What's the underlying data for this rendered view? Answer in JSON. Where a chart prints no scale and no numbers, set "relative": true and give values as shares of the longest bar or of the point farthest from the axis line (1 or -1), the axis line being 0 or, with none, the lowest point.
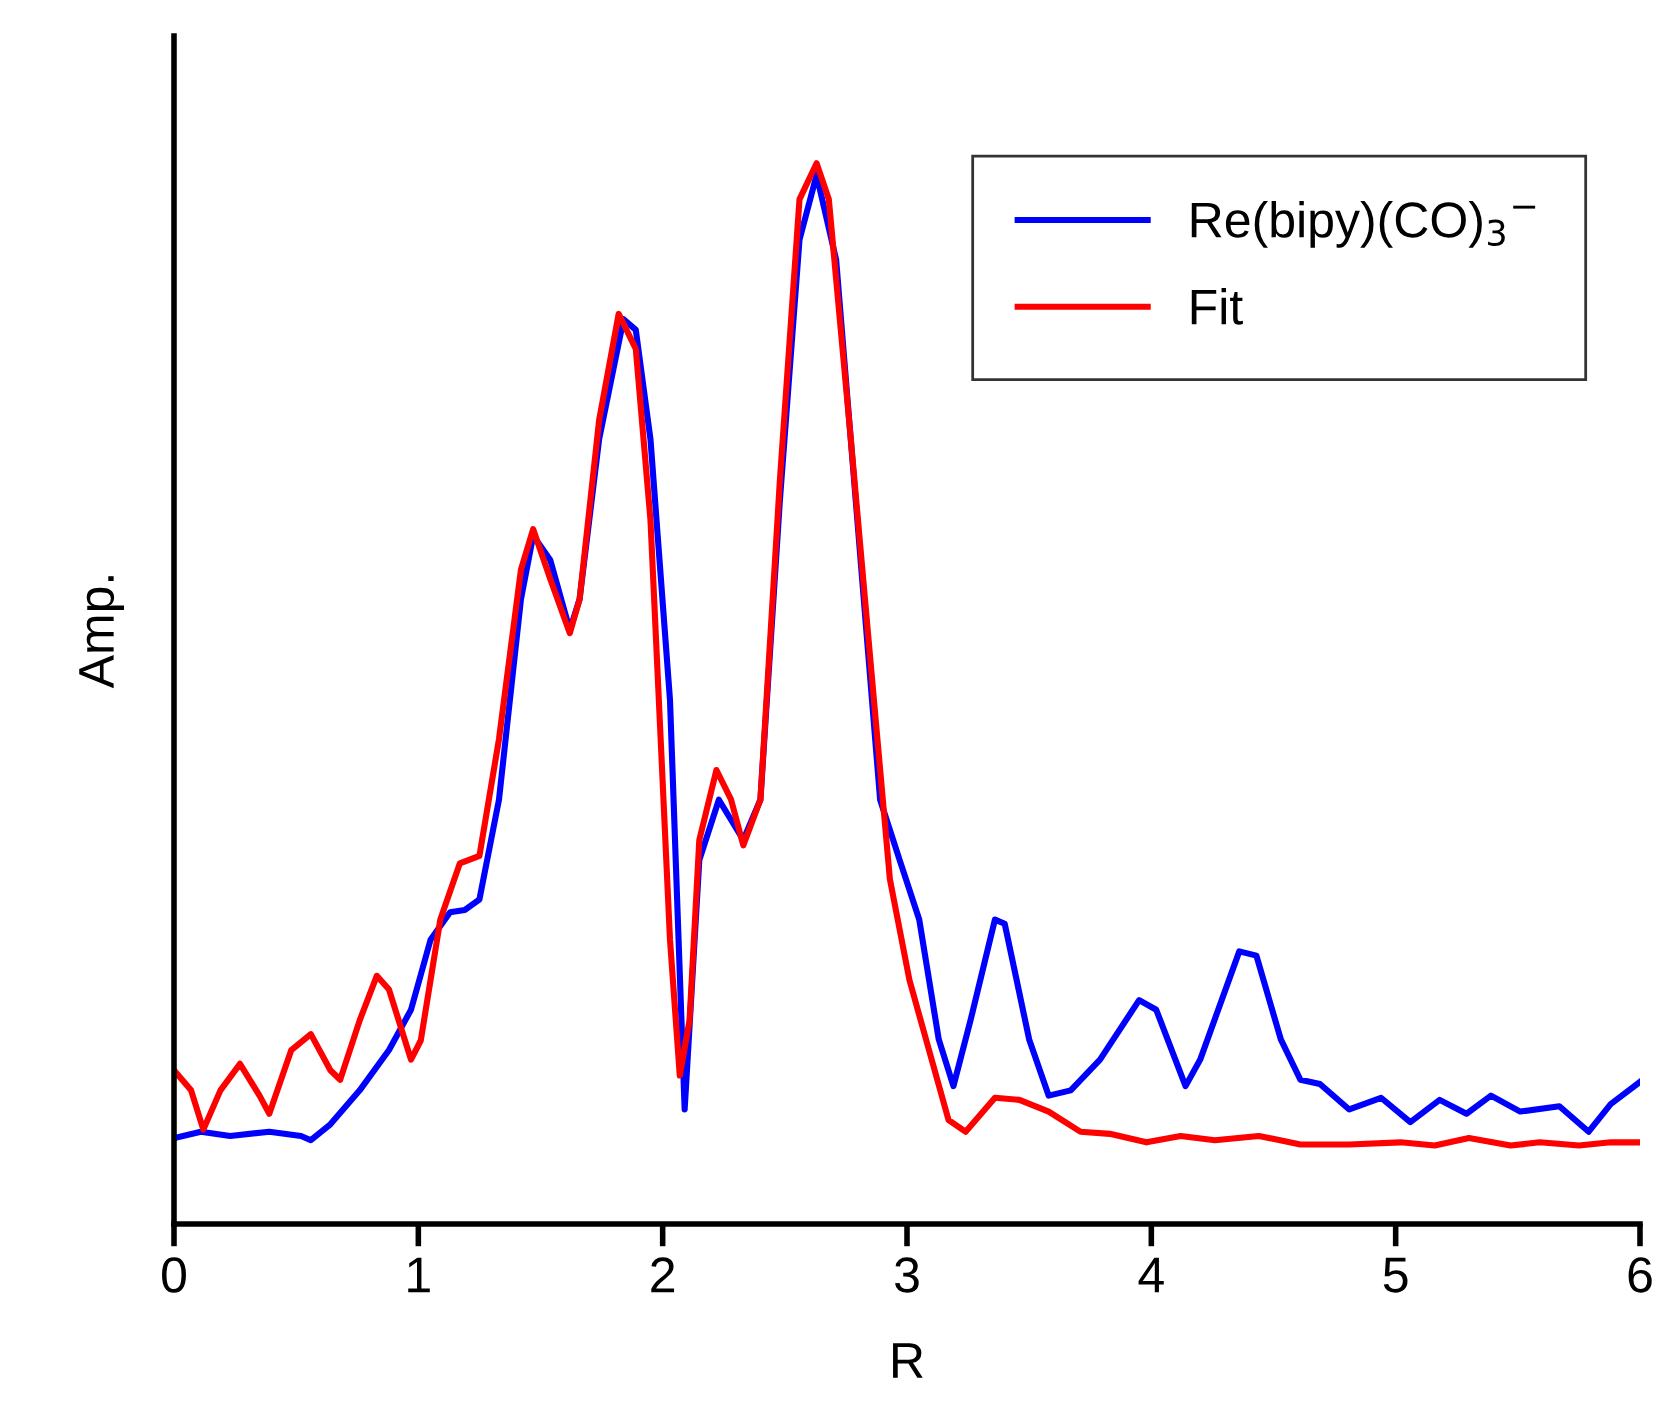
{
  "chart_data": {
    "type": "line",
    "xlabel": "R",
    "ylabel": "Amp.",
    "relative": true,
    "tick_labels": "x",
    "xlim": [
      0,
      6
    ],
    "xticks": [
      0,
      1,
      2,
      3,
      4,
      5,
      6
    ],
    "legend": "top right",
    "grid": false,
    "series": [
      {
        "name": "Re(bipy)(CO)$_{3}$$^{−}$",
        "color": "#0000ff",
        "x": [
          0,
          0.11,
          0.23,
          0.39,
          0.52,
          0.56,
          0.64,
          0.76,
          0.88,
          0.97,
          1.05,
          1.13,
          1.19,
          1.25,
          1.33,
          1.42,
          1.47,
          1.54,
          1.62,
          1.66,
          1.74,
          1.84,
          1.89,
          1.95,
          2.03,
          2.09,
          2.15,
          2.23,
          2.33,
          2.4,
          2.48,
          2.56,
          2.63,
          2.71,
          2.81,
          2.89,
          2.97,
          3.05,
          3.13,
          3.19,
          3.26,
          3.36,
          3.4,
          3.5,
          3.58,
          3.67,
          3.79,
          3.95,
          4.02,
          4.14,
          4.2,
          4.36,
          4.43,
          4.53,
          4.61,
          4.69,
          4.81,
          4.94,
          5.06,
          5.18,
          5.29,
          5.39,
          5.51,
          5.67,
          5.79,
          5.88,
          6.0
        ],
        "values": [
          0.081,
          0.087,
          0.083,
          0.087,
          0.083,
          0.079,
          0.094,
          0.126,
          0.164,
          0.202,
          0.268,
          0.294,
          0.296,
          0.306,
          0.4,
          0.589,
          0.649,
          0.626,
          0.56,
          0.589,
          0.74,
          0.853,
          0.843,
          0.74,
          0.494,
          0.108,
          0.343,
          0.4,
          0.362,
          0.4,
          0.683,
          0.928,
          0.989,
          0.909,
          0.626,
          0.4,
          0.343,
          0.287,
          0.174,
          0.13,
          0.192,
          0.287,
          0.283,
          0.174,
          0.121,
          0.126,
          0.155,
          0.211,
          0.202,
          0.13,
          0.155,
          0.257,
          0.253,
          0.174,
          0.136,
          0.132,
          0.108,
          0.119,
          0.096,
          0.117,
          0.104,
          0.121,
          0.106,
          0.111,
          0.087,
          0.113,
          0.134
        ]
      },
      {
        "name": "Fit",
        "color": "#ff0000",
        "x": [
          0,
          0.07,
          0.12,
          0.19,
          0.27,
          0.35,
          0.39,
          0.48,
          0.56,
          0.64,
          0.68,
          0.76,
          0.83,
          0.88,
          0.97,
          1.01,
          1.09,
          1.17,
          1.25,
          1.33,
          1.42,
          1.47,
          1.54,
          1.62,
          1.66,
          1.74,
          1.82,
          1.89,
          1.95,
          2.03,
          2.07,
          2.11,
          2.15,
          2.22,
          2.28,
          2.33,
          2.4,
          2.48,
          2.56,
          2.63,
          2.68,
          2.77,
          2.85,
          2.93,
          3.01,
          3.09,
          3.17,
          3.24,
          3.36,
          3.46,
          3.58,
          3.71,
          3.83,
          3.98,
          4.12,
          4.26,
          4.44,
          4.61,
          4.81,
          5.02,
          5.16,
          5.3,
          5.47,
          5.59,
          5.75,
          5.88,
          6.0
        ],
        "values": [
          0.145,
          0.126,
          0.089,
          0.126,
          0.151,
          0.121,
          0.104,
          0.164,
          0.179,
          0.145,
          0.136,
          0.192,
          0.234,
          0.221,
          0.155,
          0.173,
          0.287,
          0.34,
          0.347,
          0.457,
          0.617,
          0.655,
          0.608,
          0.557,
          0.589,
          0.758,
          0.858,
          0.825,
          0.664,
          0.268,
          0.14,
          0.192,
          0.362,
          0.428,
          0.4,
          0.357,
          0.4,
          0.702,
          0.966,
          1.0,
          0.966,
          0.74,
          0.532,
          0.325,
          0.23,
          0.164,
          0.098,
          0.087,
          0.119,
          0.117,
          0.106,
          0.087,
          0.085,
          0.077,
          0.083,
          0.079,
          0.083,
          0.075,
          0.075,
          0.077,
          0.074,
          0.081,
          0.074,
          0.077,
          0.074,
          0.077,
          0.077
        ]
      }
    ]
  }
}
